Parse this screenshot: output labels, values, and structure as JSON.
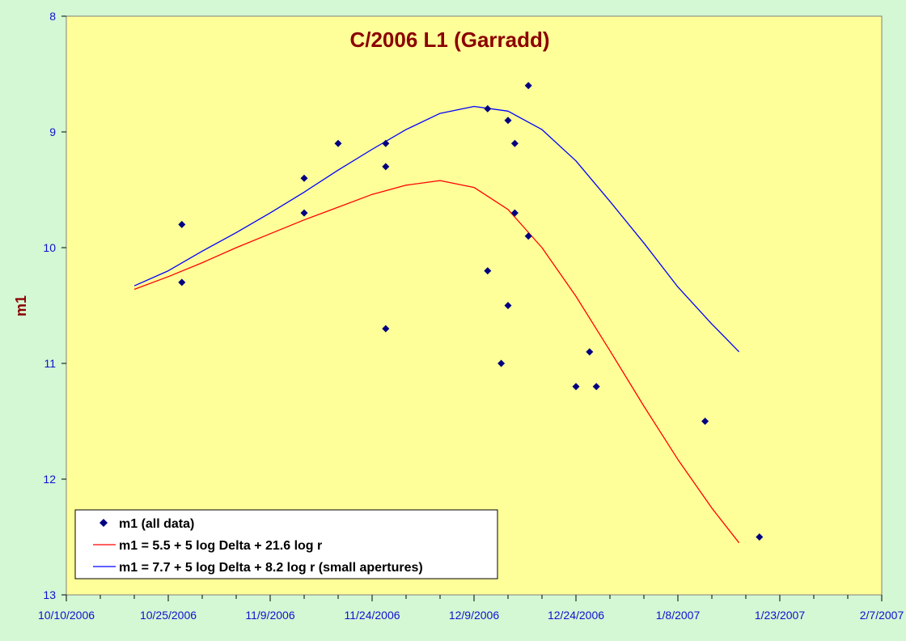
{
  "chart_data": {
    "type": "scatter",
    "title": "C/2006 L1 (Garradd)",
    "xlabel": "",
    "ylabel": "m1",
    "y_reversed": true,
    "ylim": [
      8,
      13
    ],
    "yticks": [
      8,
      9,
      10,
      11,
      12,
      13
    ],
    "xlim": [
      "2006-10-10",
      "2007-02-07"
    ],
    "xticks": [
      "10/10/2006",
      "10/25/2006",
      "11/9/2006",
      "11/24/2006",
      "12/9/2006",
      "12/24/2006",
      "1/8/2007",
      "1/23/2007",
      "2/7/2007"
    ],
    "grid": false,
    "legend_position": "bottom-left",
    "colors": {
      "plot_background": "#ffff99",
      "outer_background": "#d4f7d4",
      "points": "#000080",
      "red_line": "#ff0000",
      "blue_line": "#0000ff",
      "title": "#8b0000",
      "ticks": "#1010d0"
    },
    "series": [
      {
        "name": "m1 (all data)",
        "kind": "points",
        "points": [
          {
            "x": "2006-10-27",
            "y": 9.8
          },
          {
            "x": "2006-10-27",
            "y": 10.3
          },
          {
            "x": "2006-11-14",
            "y": 9.4
          },
          {
            "x": "2006-11-14",
            "y": 9.7
          },
          {
            "x": "2006-11-19",
            "y": 9.1
          },
          {
            "x": "2006-11-26",
            "y": 9.1
          },
          {
            "x": "2006-11-26",
            "y": 9.3
          },
          {
            "x": "2006-11-26",
            "y": 10.7
          },
          {
            "x": "2006-12-11",
            "y": 8.8
          },
          {
            "x": "2006-12-11",
            "y": 10.2
          },
          {
            "x": "2006-12-13",
            "y": 11.0
          },
          {
            "x": "2006-12-14",
            "y": 8.9
          },
          {
            "x": "2006-12-14",
            "y": 10.5
          },
          {
            "x": "2006-12-15",
            "y": 9.1
          },
          {
            "x": "2006-12-15",
            "y": 9.7
          },
          {
            "x": "2006-12-17",
            "y": 8.6
          },
          {
            "x": "2006-12-17",
            "y": 9.9
          },
          {
            "x": "2006-12-24",
            "y": 11.2
          },
          {
            "x": "2006-12-26",
            "y": 10.9
          },
          {
            "x": "2006-12-27",
            "y": 11.2
          },
          {
            "x": "2007-01-12",
            "y": 11.5
          },
          {
            "x": "2007-01-20",
            "y": 12.5
          }
        ]
      },
      {
        "name": "m1 = 5.5 + 5 log Delta + 21.6 log r",
        "kind": "line",
        "points": [
          {
            "x": "2006-10-20",
            "y": 10.36
          },
          {
            "x": "2006-10-25",
            "y": 10.25
          },
          {
            "x": "2006-10-30",
            "y": 10.13
          },
          {
            "x": "2006-11-04",
            "y": 10.0
          },
          {
            "x": "2006-11-09",
            "y": 9.88
          },
          {
            "x": "2006-11-14",
            "y": 9.76
          },
          {
            "x": "2006-11-19",
            "y": 9.65
          },
          {
            "x": "2006-11-24",
            "y": 9.54
          },
          {
            "x": "2006-11-29",
            "y": 9.46
          },
          {
            "x": "2006-12-04",
            "y": 9.42
          },
          {
            "x": "2006-12-09",
            "y": 9.48
          },
          {
            "x": "2006-12-14",
            "y": 9.67
          },
          {
            "x": "2006-12-19",
            "y": 10.0
          },
          {
            "x": "2006-12-24",
            "y": 10.42
          },
          {
            "x": "2006-12-29",
            "y": 10.89
          },
          {
            "x": "2007-01-03",
            "y": 11.37
          },
          {
            "x": "2007-01-08",
            "y": 11.83
          },
          {
            "x": "2007-01-13",
            "y": 12.25
          },
          {
            "x": "2007-01-17",
            "y": 12.55
          }
        ]
      },
      {
        "name": "m1 = 7.7 + 5 log Delta + 8.2 log r (small apertures)",
        "kind": "line",
        "points": [
          {
            "x": "2006-10-20",
            "y": 10.33
          },
          {
            "x": "2006-10-25",
            "y": 10.2
          },
          {
            "x": "2006-10-30",
            "y": 10.03
          },
          {
            "x": "2006-11-04",
            "y": 9.87
          },
          {
            "x": "2006-11-09",
            "y": 9.7
          },
          {
            "x": "2006-11-14",
            "y": 9.52
          },
          {
            "x": "2006-11-19",
            "y": 9.33
          },
          {
            "x": "2006-11-24",
            "y": 9.15
          },
          {
            "x": "2006-11-29",
            "y": 8.98
          },
          {
            "x": "2006-12-04",
            "y": 8.84
          },
          {
            "x": "2006-12-09",
            "y": 8.78
          },
          {
            "x": "2006-12-14",
            "y": 8.82
          },
          {
            "x": "2006-12-19",
            "y": 8.98
          },
          {
            "x": "2006-12-24",
            "y": 9.25
          },
          {
            "x": "2006-12-29",
            "y": 9.6
          },
          {
            "x": "2007-01-03",
            "y": 9.96
          },
          {
            "x": "2007-01-08",
            "y": 10.34
          },
          {
            "x": "2007-01-13",
            "y": 10.66
          },
          {
            "x": "2007-01-17",
            "y": 10.9
          }
        ]
      }
    ]
  }
}
